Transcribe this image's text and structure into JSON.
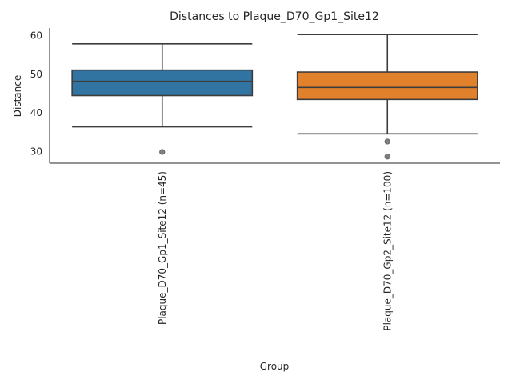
{
  "chart_data": {
    "type": "box",
    "title": "Distances to Plaque_D70_Gp1_Site12",
    "xlabel": "Group",
    "ylabel": "Distance",
    "ylim": [
      27,
      62
    ],
    "yticks": [
      30,
      40,
      50,
      60
    ],
    "grid": false,
    "categories": [
      "Plaque_D70_Gp1_Site12 (n=45)",
      "Plaque_D70_Gp2_Site12 (n=100)"
    ],
    "boxes": [
      {
        "category": "Plaque_D70_Gp1_Site12 (n=45)",
        "color": "#3274a1",
        "whisker_low": 36.4,
        "q1": 44.5,
        "median": 48.2,
        "q3": 51.1,
        "whisker_high": 57.9,
        "outliers": [
          29.9
        ]
      },
      {
        "category": "Plaque_D70_Gp2_Site12 (n=100)",
        "color": "#e1812c",
        "whisker_low": 34.6,
        "q1": 43.5,
        "median": 46.6,
        "q3": 50.6,
        "whisker_high": 60.3,
        "outliers": [
          32.6,
          28.7
        ]
      }
    ]
  }
}
